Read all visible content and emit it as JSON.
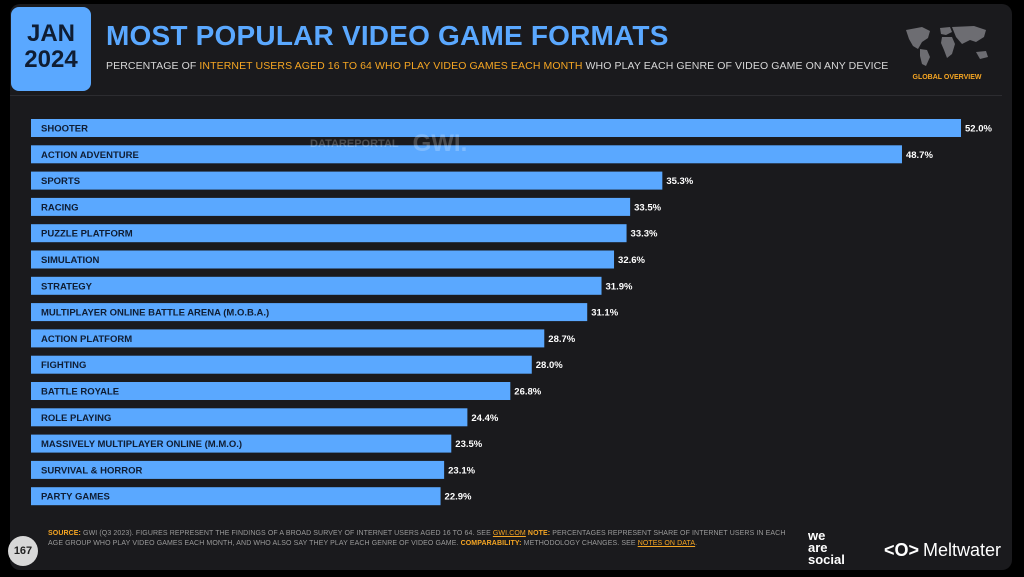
{
  "header": {
    "month": "JAN",
    "year": "2024",
    "title": "MOST POPULAR VIDEO GAME FORMATS",
    "subtitle_pre": "PERCENTAGE OF ",
    "subtitle_highlight": "INTERNET USERS AGED 16 TO 64 WHO PLAY VIDEO GAMES EACH MONTH",
    "subtitle_post": " WHO PLAY EACH GENRE OF VIDEO GAME ON ANY DEVICE",
    "map_label": "GLOBAL OVERVIEW",
    "map_icon": "world-map-icon"
  },
  "watermark": {
    "datareportal": "DATAREPORTAL",
    "gwi": "GWI."
  },
  "chart_data": {
    "type": "bar",
    "orientation": "horizontal",
    "categories": [
      "SHOOTER",
      "ACTION ADVENTURE",
      "SPORTS",
      "RACING",
      "PUZZLE PLATFORM",
      "SIMULATION",
      "STRATEGY",
      "MULTIPLAYER ONLINE BATTLE ARENA (M.O.B.A.)",
      "ACTION PLATFORM",
      "FIGHTING",
      "BATTLE ROYALE",
      "ROLE PLAYING",
      "MASSIVELY MULTIPLAYER ONLINE (M.M.O.)",
      "SURVIVAL & HORROR",
      "PARTY GAMES"
    ],
    "values": [
      52.0,
      48.7,
      35.3,
      33.5,
      33.3,
      32.6,
      31.9,
      31.1,
      28.7,
      28.0,
      26.8,
      24.4,
      23.5,
      23.1,
      22.9
    ],
    "labels": [
      "52.0%",
      "48.7%",
      "35.3%",
      "33.5%",
      "33.3%",
      "32.6%",
      "31.9%",
      "31.1%",
      "28.7%",
      "28.0%",
      "26.8%",
      "24.4%",
      "23.5%",
      "23.1%",
      "22.9%"
    ],
    "bar_color": "#5aa8ff",
    "xlim": [
      0,
      52.0
    ]
  },
  "footer": {
    "source_label": "SOURCE:",
    "source_text": " GWI (Q3 2023). FIGURES REPRESENT THE FINDINGS OF A BROAD SURVEY OF INTERNET USERS AGED 16 TO 64. SEE ",
    "source_link": "GWI.COM",
    "note_label": " NOTE:",
    "note_text": " PERCENTAGES REPRESENT SHARE OF INTERNET USERS IN EACH AGE GROUP WHO PLAY VIDEO GAMES EACH MONTH, AND WHO ALSO SAY THEY PLAY EACH GENRE OF VIDEO GAME.",
    "comparability_label": " COMPARABILITY:",
    "comparability_text": " METHODOLOGY CHANGES. SEE ",
    "notes_link": "NOTES ON DATA",
    "notes_end": ".",
    "page_number": "167",
    "brand_we": "we",
    "brand_are": "are",
    "brand_social": "social",
    "brand_meltwater_logo": "<O>",
    "brand_meltwater": "Meltwater"
  },
  "colors": {
    "accent": "#5aa8ff",
    "highlight": "#f6a623",
    "background": "#1a1a1d"
  }
}
